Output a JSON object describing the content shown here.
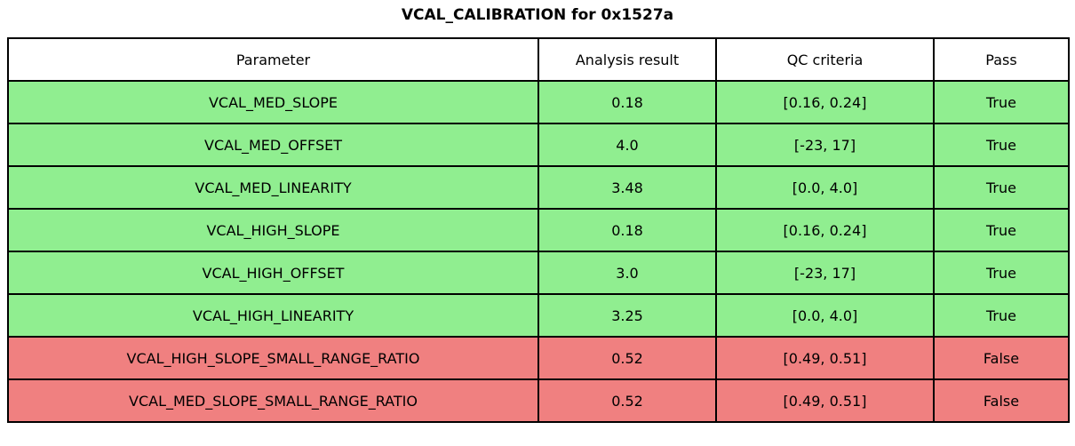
{
  "title": "VCAL_CALIBRATION for 0x1527a",
  "colors": {
    "pass_row_bg": "#90EE90",
    "fail_row_bg": "#F08080",
    "header_bg": "#FFFFFF",
    "border": "#000000",
    "text": "#000000"
  },
  "table": {
    "columns": [
      "Parameter",
      "Analysis result",
      "QC criteria",
      "Pass"
    ],
    "rows": [
      {
        "parameter": "VCAL_MED_SLOPE",
        "analysis_result": "0.18",
        "qc_criteria": "[0.16, 0.24]",
        "pass": "True",
        "passed": true
      },
      {
        "parameter": "VCAL_MED_OFFSET",
        "analysis_result": "4.0",
        "qc_criteria": "[-23, 17]",
        "pass": "True",
        "passed": true
      },
      {
        "parameter": "VCAL_MED_LINEARITY",
        "analysis_result": "3.48",
        "qc_criteria": "[0.0, 4.0]",
        "pass": "True",
        "passed": true
      },
      {
        "parameter": "VCAL_HIGH_SLOPE",
        "analysis_result": "0.18",
        "qc_criteria": "[0.16, 0.24]",
        "pass": "True",
        "passed": true
      },
      {
        "parameter": "VCAL_HIGH_OFFSET",
        "analysis_result": "3.0",
        "qc_criteria": "[-23, 17]",
        "pass": "True",
        "passed": true
      },
      {
        "parameter": "VCAL_HIGH_LINEARITY",
        "analysis_result": "3.25",
        "qc_criteria": "[0.0, 4.0]",
        "pass": "True",
        "passed": true
      },
      {
        "parameter": "VCAL_HIGH_SLOPE_SMALL_RANGE_RATIO",
        "analysis_result": "0.52",
        "qc_criteria": "[0.49, 0.51]",
        "pass": "False",
        "passed": false
      },
      {
        "parameter": "VCAL_MED_SLOPE_SMALL_RANGE_RATIO",
        "analysis_result": "0.52",
        "qc_criteria": "[0.49, 0.51]",
        "pass": "False",
        "passed": false
      }
    ]
  },
  "chart_data": {
    "type": "table",
    "title": "VCAL_CALIBRATION for 0x1527a",
    "columns": [
      "Parameter",
      "Analysis result",
      "QC criteria",
      "Pass"
    ],
    "rows": [
      [
        "VCAL_MED_SLOPE",
        0.18,
        "[0.16, 0.24]",
        true
      ],
      [
        "VCAL_MED_OFFSET",
        4.0,
        "[-23, 17]",
        true
      ],
      [
        "VCAL_MED_LINEARITY",
        3.48,
        "[0.0, 4.0]",
        true
      ],
      [
        "VCAL_HIGH_SLOPE",
        0.18,
        "[0.16, 0.24]",
        true
      ],
      [
        "VCAL_HIGH_OFFSET",
        3.0,
        "[-23, 17]",
        true
      ],
      [
        "VCAL_HIGH_LINEARITY",
        3.25,
        "[0.0, 4.0]",
        true
      ],
      [
        "VCAL_HIGH_SLOPE_SMALL_RANGE_RATIO",
        0.52,
        "[0.49, 0.51]",
        false
      ],
      [
        "VCAL_MED_SLOPE_SMALL_RANGE_RATIO",
        0.52,
        "[0.49, 0.51]",
        false
      ]
    ],
    "row_colors": [
      "#90EE90",
      "#90EE90",
      "#90EE90",
      "#90EE90",
      "#90EE90",
      "#90EE90",
      "#F08080",
      "#F08080"
    ],
    "legend_position": "none",
    "grid": true
  }
}
